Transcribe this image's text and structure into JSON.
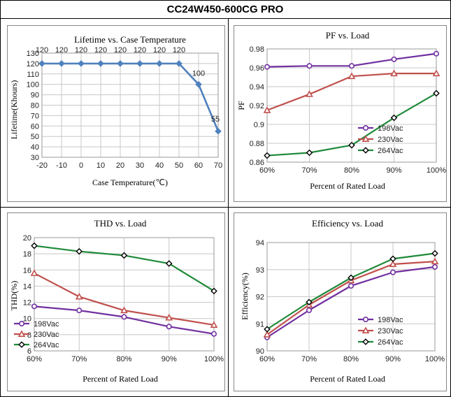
{
  "page_title": "CC24W450-600CG PRO",
  "colors": {
    "blue": "#4f81bd",
    "purple": "#7030a0",
    "red": "#c0504d",
    "green": "#1f8a3a",
    "grid": "#c8c8c8",
    "border": "#000000"
  },
  "chart_data": [
    {
      "id": "lifetime",
      "type": "line",
      "title": "Lifetime vs. Case Temperature",
      "xlabel": "Case Temperature(℃)",
      "ylabel": "Lifetime(Khours)",
      "x": [
        -20,
        -10,
        0,
        10,
        20,
        30,
        40,
        50,
        60,
        70
      ],
      "x_tick_labels": [
        "-20",
        "-10",
        "0",
        "10",
        "20",
        "30",
        "40",
        "50",
        "60",
        "70"
      ],
      "xlim": [
        -20,
        70
      ],
      "ylim": [
        30,
        130
      ],
      "y_ticks": [
        30,
        40,
        50,
        60,
        70,
        80,
        90,
        100,
        110,
        120,
        130
      ],
      "grid": true,
      "series": [
        {
          "name": "Lifetime",
          "marker": "diamond",
          "color": "#4f81bd",
          "values": [
            120,
            120,
            120,
            120,
            120,
            120,
            120,
            120,
            100,
            55
          ],
          "data_labels": [
            "120",
            "120",
            "120",
            "120",
            "120",
            "120",
            "120",
            "120",
            "100",
            "55"
          ]
        }
      ]
    },
    {
      "id": "pf",
      "type": "line",
      "title": "PF vs. Load",
      "xlabel": "Percent of Rated Load",
      "ylabel": "PF",
      "x_tick_labels": [
        "60%",
        "70%",
        "80%",
        "90%",
        "100%"
      ],
      "ylim": [
        0.86,
        0.98
      ],
      "y_ticks": [
        0.86,
        0.88,
        0.9,
        0.92,
        0.94,
        0.96,
        0.98
      ],
      "y_tick_labels": [
        "0.86",
        "0.88",
        "0.9",
        "0.92",
        "0.94",
        "0.96",
        "0.98"
      ],
      "grid": true,
      "legend": "bottom-right",
      "series": [
        {
          "name": "198Vac",
          "marker": "circle",
          "color": "#7030a0",
          "values": [
            0.961,
            0.962,
            0.962,
            0.969,
            0.975
          ]
        },
        {
          "name": "230Vac",
          "marker": "triangle",
          "color": "#c0504d",
          "values": [
            0.915,
            0.932,
            0.951,
            0.954,
            0.954
          ]
        },
        {
          "name": "264Vac",
          "marker": "diamond",
          "color": "#1f8a3a",
          "values": [
            0.867,
            0.87,
            0.878,
            0.907,
            0.933
          ]
        }
      ]
    },
    {
      "id": "thd",
      "type": "line",
      "title": "THD vs. Load",
      "xlabel": "Percent of Rated Load",
      "ylabel": "THD(%)",
      "x_tick_labels": [
        "60%",
        "70%",
        "80%",
        "90%",
        "100%"
      ],
      "ylim": [
        6,
        20
      ],
      "y_ticks": [
        6,
        8,
        10,
        12,
        14,
        16,
        18,
        20
      ],
      "grid": true,
      "legend": "bottom-left",
      "series": [
        {
          "name": "198Vac",
          "marker": "circle",
          "color": "#7030a0",
          "values": [
            11.5,
            11.0,
            10.2,
            9.0,
            8.1
          ]
        },
        {
          "name": "230Vac",
          "marker": "triangle",
          "color": "#c0504d",
          "values": [
            15.6,
            12.7,
            11.0,
            10.1,
            9.2
          ]
        },
        {
          "name": "264Vac",
          "marker": "diamond",
          "color": "#1f8a3a",
          "values": [
            19.0,
            18.3,
            17.8,
            16.8,
            13.4
          ]
        }
      ]
    },
    {
      "id": "eff",
      "type": "line",
      "title": "Efficiency vs. Load",
      "xlabel": "Percent of Rated Load",
      "ylabel": "Efficiency(%)",
      "x_tick_labels": [
        "60%",
        "70%",
        "80%",
        "90%",
        "100%"
      ],
      "ylim": [
        90,
        94
      ],
      "y_ticks": [
        90,
        91,
        92,
        93,
        94
      ],
      "grid": true,
      "legend": "bottom-right",
      "series": [
        {
          "name": "198Vac",
          "marker": "circle",
          "color": "#7030a0",
          "values": [
            90.5,
            91.5,
            92.4,
            92.9,
            93.1
          ]
        },
        {
          "name": "230Vac",
          "marker": "triangle",
          "color": "#c0504d",
          "values": [
            90.6,
            91.7,
            92.6,
            93.2,
            93.3
          ]
        },
        {
          "name": "264Vac",
          "marker": "diamond",
          "color": "#1f8a3a",
          "values": [
            90.8,
            91.8,
            92.7,
            93.4,
            93.6
          ]
        }
      ]
    }
  ]
}
